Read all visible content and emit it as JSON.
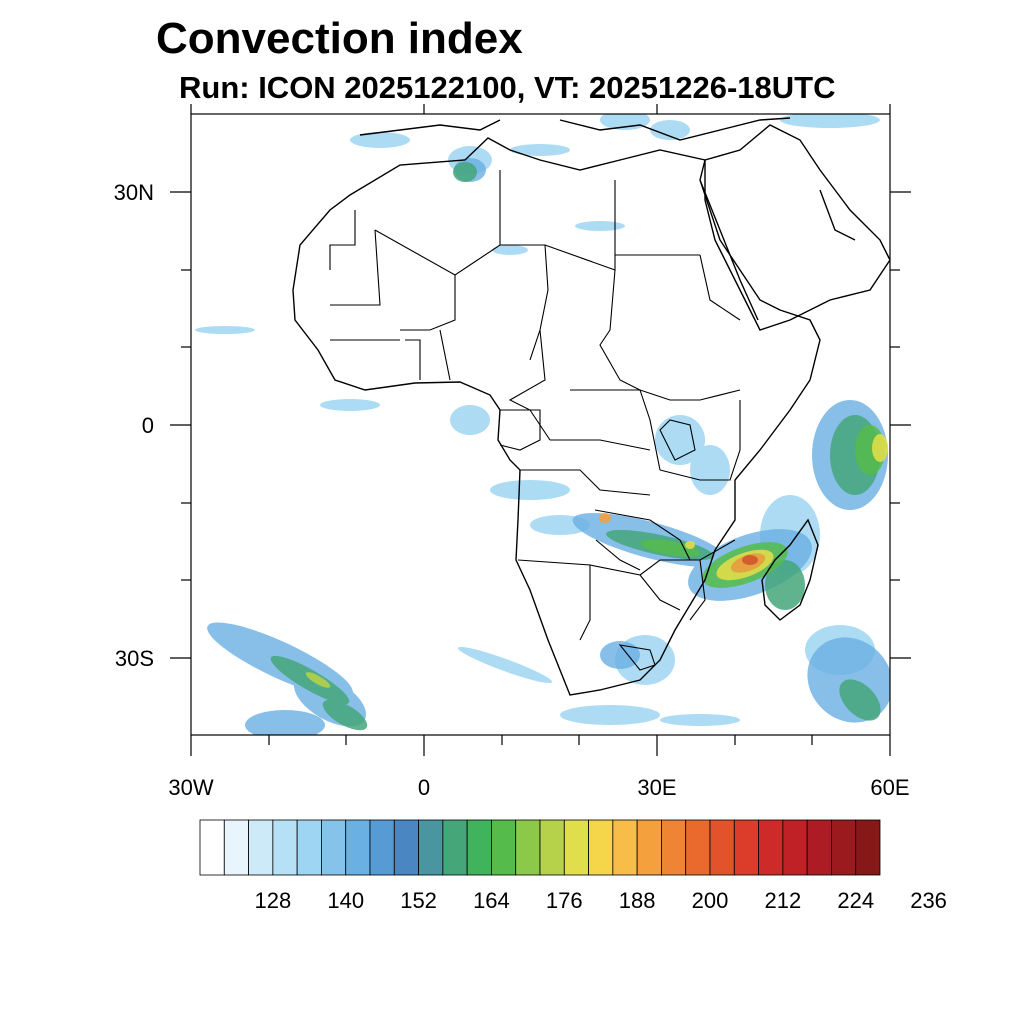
{
  "title": "Convection index",
  "subtitle": "Run: ICON 2025122100,  VT: 20251226-18UTC",
  "map": {
    "region": "Africa",
    "lon_range": [
      -30,
      60
    ],
    "lat_range": [
      -40,
      40
    ],
    "x_ticks": [
      {
        "lon": -30,
        "label": "30W"
      },
      {
        "lon": 0,
        "label": "0"
      },
      {
        "lon": 30,
        "label": "30E"
      },
      {
        "lon": 60,
        "label": "60E"
      }
    ],
    "y_ticks": [
      {
        "lat": 30,
        "label": "30N"
      },
      {
        "lat": 0,
        "label": "0"
      },
      {
        "lat": -30,
        "label": "30S"
      }
    ]
  },
  "colorbar": {
    "colors": [
      "#ffffff",
      "#e8f5fc",
      "#cdeaf8",
      "#b5e0f5",
      "#9ed5f2",
      "#85c3eb",
      "#6bb0e3",
      "#579bd4",
      "#4a86c2",
      "#4996a0",
      "#45a67a",
      "#40b45c",
      "#55bb4a",
      "#8cc84a",
      "#b5d24a",
      "#e0de4a",
      "#f5d54a",
      "#f7bd48",
      "#f4a03d",
      "#ef8435",
      "#ea6a2e",
      "#e3532b",
      "#dc3c2a",
      "#cf2a2a",
      "#bf2127",
      "#ad1c24",
      "#9a1a1e",
      "#861818"
    ],
    "labels": [
      "128",
      "140",
      "152",
      "164",
      "176",
      "188",
      "200",
      "212",
      "224",
      "236"
    ]
  }
}
